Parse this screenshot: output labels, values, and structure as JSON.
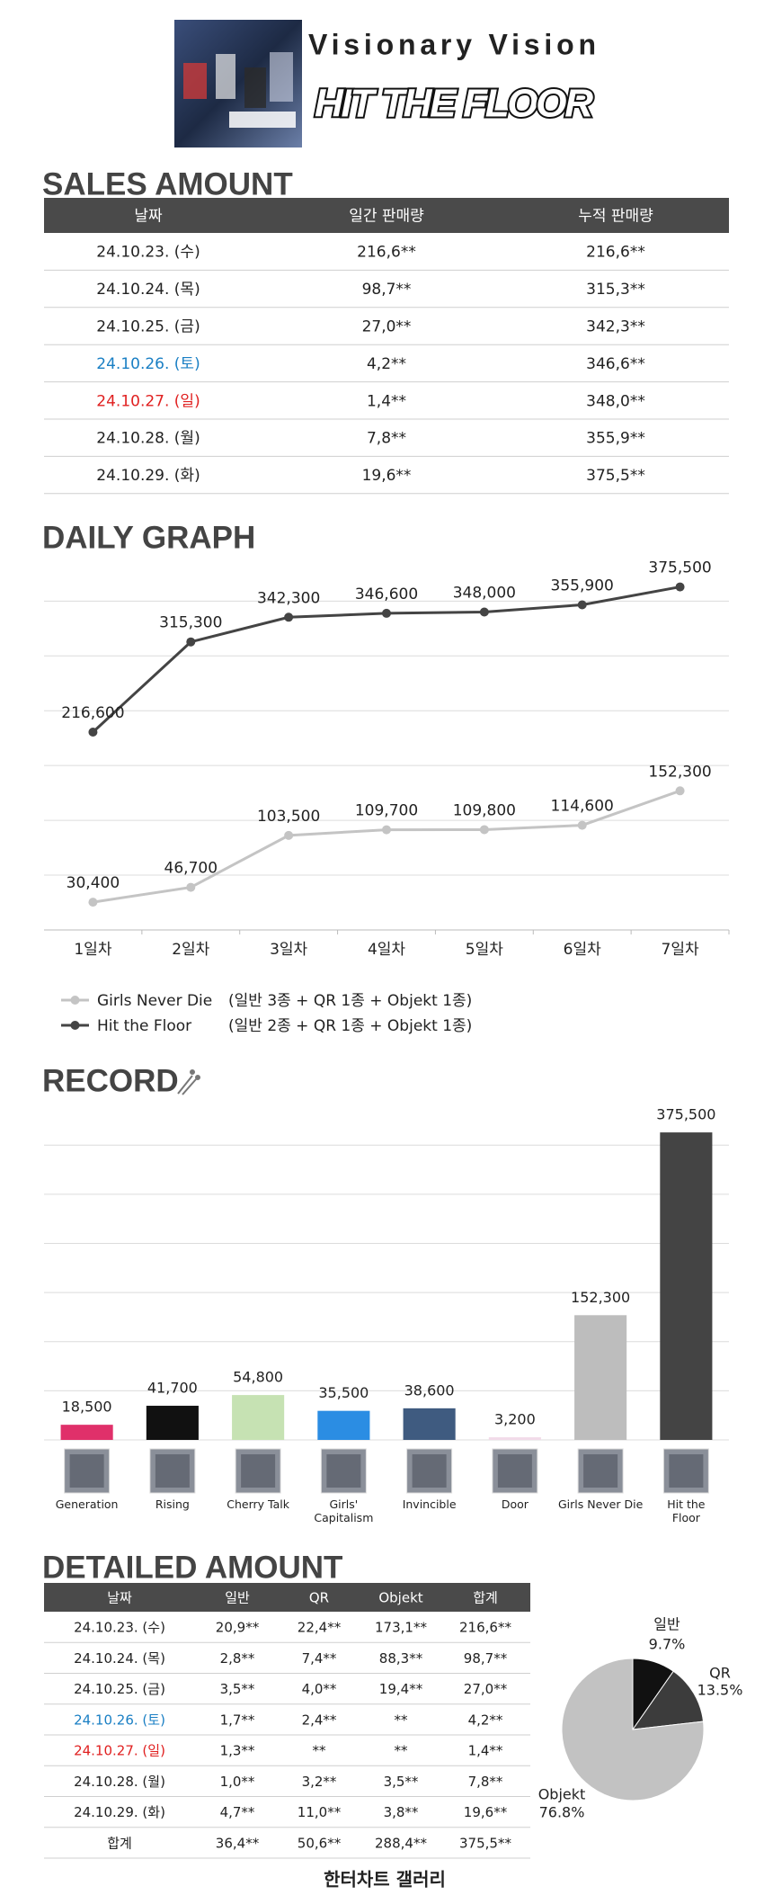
{
  "header": {
    "title": "Visionary Vision",
    "subtitle": "HIT THE FLOOR"
  },
  "sales": {
    "title": "SALES AMOUNT",
    "columns": [
      "날짜",
      "일간 판매량",
      "누적 판매량"
    ],
    "rows": [
      {
        "cells": [
          "24.10.23. (수)",
          "216,6**",
          "216,6**"
        ]
      },
      {
        "cells": [
          "24.10.24. (목)",
          "98,7**",
          "315,3**"
        ]
      },
      {
        "cells": [
          "24.10.25. (금)",
          "27,0**",
          "342,3**"
        ]
      },
      {
        "cells": [
          "24.10.26. (토)",
          "4,2**",
          "346,6**"
        ],
        "color": "#1a7fc4"
      },
      {
        "cells": [
          "24.10.27. (일)",
          "1,4**",
          "348,0**"
        ],
        "color": "#e02020"
      },
      {
        "cells": [
          "24.10.28. (월)",
          "7,8**",
          "355,9**"
        ]
      },
      {
        "cells": [
          "24.10.29. (화)",
          "19,6**",
          "375,5**"
        ]
      }
    ]
  },
  "chart_data": [
    {
      "type": "line",
      "title": "DAILY GRAPH",
      "categories": [
        "1일차",
        "2일차",
        "3일차",
        "4일차",
        "5일차",
        "6일차",
        "7일차"
      ],
      "series": [
        {
          "name": "Girls Never Die",
          "note": "(일반 3종 + QR 1종 + Objekt 1종)",
          "color": "#c4c4c4",
          "values": [
            30400,
            46700,
            103500,
            109700,
            109800,
            114600,
            152300
          ],
          "value_labels": [
            "30,400",
            "46,700",
            "103,500",
            "109,700",
            "109,800",
            "114,600",
            "152,300"
          ]
        },
        {
          "name": "Hit the Floor",
          "note": "(일반 2종 + QR 1종 + Objekt 1종)",
          "color": "#444444",
          "values": [
            216600,
            315300,
            342300,
            346600,
            348000,
            355900,
            375500
          ],
          "value_labels": [
            "216,600",
            "315,300",
            "342,300",
            "346,600",
            "348,000",
            "355,900",
            "375,500"
          ]
        }
      ],
      "ylim": [
        0,
        380000
      ],
      "yticks": [
        0,
        60000,
        120000,
        180000,
        240000,
        300000,
        360000
      ],
      "grid": true,
      "tick_labels": false
    },
    {
      "type": "bar",
      "title": "RECORD",
      "categories": [
        "Generation",
        "Rising",
        "Cherry Talk",
        "Girls' Capitalism",
        "Invincible",
        "Door",
        "Girls Never Die",
        "Hit the Floor"
      ],
      "values": [
        18500,
        41700,
        54800,
        35500,
        38600,
        3200,
        152300,
        375500
      ],
      "value_labels": [
        "18,500",
        "41,700",
        "54,800",
        "35,500",
        "38,600",
        "3,200",
        "152,300",
        "375,500"
      ],
      "colors": [
        "#e0306a",
        "#111111",
        "#c6e2b3",
        "#2b8de3",
        "#3f5b80",
        "#f2dbe9",
        "#bdbdbd",
        "#444444"
      ],
      "ylim": [
        0,
        380000
      ],
      "yticks": [
        0,
        60000,
        120000,
        180000,
        240000,
        300000,
        360000
      ],
      "grid": true,
      "tick_labels": false
    },
    {
      "type": "pie",
      "categories": [
        "일반",
        "QR",
        "Objekt"
      ],
      "values": [
        9.7,
        13.5,
        76.8
      ],
      "value_labels": [
        "9.7%",
        "13.5%",
        "76.8%"
      ],
      "colors": [
        "#111111",
        "#3c3c3c",
        "#c2c2c2"
      ]
    }
  ],
  "detail": {
    "title": "DETAILED AMOUNT",
    "columns": [
      "날짜",
      "일반",
      "QR",
      "Objekt",
      "합계"
    ],
    "rows": [
      {
        "cells": [
          "24.10.23. (수)",
          "20,9**",
          "22,4**",
          "173,1**",
          "216,6**"
        ]
      },
      {
        "cells": [
          "24.10.24. (목)",
          "2,8**",
          "7,4**",
          "88,3**",
          "98,7**"
        ]
      },
      {
        "cells": [
          "24.10.25. (금)",
          "3,5**",
          "4,0**",
          "19,4**",
          "27,0**"
        ]
      },
      {
        "cells": [
          "24.10.26. (토)",
          "1,7**",
          "2,4**",
          "**",
          "4,2**"
        ],
        "color": "#1a7fc4"
      },
      {
        "cells": [
          "24.10.27. (일)",
          "1,3**",
          "**",
          "**",
          "1,4**"
        ],
        "color": "#e02020"
      },
      {
        "cells": [
          "24.10.28. (월)",
          "1,0**",
          "3,2**",
          "3,5**",
          "7,8**"
        ]
      },
      {
        "cells": [
          "24.10.29. (화)",
          "4,7**",
          "11,0**",
          "3,8**",
          "19,6**"
        ]
      },
      {
        "cells": [
          "합계",
          "36,4**",
          "50,6**",
          "288,4**",
          "375,5**"
        ]
      }
    ]
  },
  "footer": {
    "text": "한터차트 갤러리"
  }
}
